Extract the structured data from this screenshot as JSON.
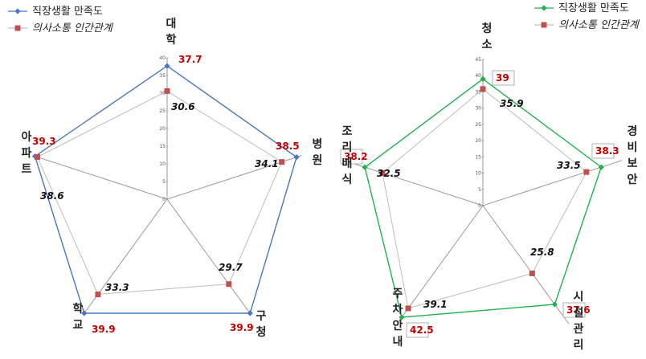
{
  "chart_data": [
    {
      "type": "radar",
      "legend": [
        "직장생활 만족도",
        "의사소통 인간관계"
      ],
      "legend_placement": "top-left",
      "categories": [
        "대학",
        "병원",
        "구청",
        "학교",
        "아파트"
      ],
      "rlim": [
        0,
        40
      ],
      "ticks": [
        "0",
        "5",
        "10",
        "15",
        "20",
        "25",
        "30",
        "35",
        "40"
      ],
      "series": [
        {
          "name": "직장생활 만족도",
          "color": "#4a76c2",
          "values": [
            37.7,
            38.5,
            39.9,
            39.9,
            39.3
          ]
        },
        {
          "name": "의사소통 인간관계",
          "color": "#c0504d",
          "values": [
            30.6,
            34.1,
            29.7,
            33.3,
            38.6
          ]
        }
      ]
    },
    {
      "type": "radar",
      "legend": [
        "직장생활 만족도",
        "의사소통 인간관계"
      ],
      "legend_placement": "top-right",
      "categories": [
        "청소",
        "경비보안",
        "시설관리",
        "주차안내",
        "조리배식"
      ],
      "rlim": [
        0,
        45
      ],
      "ticks": [
        "0",
        "5",
        "10",
        "15",
        "20",
        "25",
        "30",
        "35",
        "40",
        "45"
      ],
      "series": [
        {
          "name": "직장생활 만족도",
          "color": "#22b14c",
          "values": [
            39,
            38.3,
            37.6,
            42.5,
            38.2
          ]
        },
        {
          "name": "의사소통 인간관계",
          "color": "#c0504d",
          "values": [
            35.9,
            33.5,
            25.8,
            39.1,
            32.5
          ]
        }
      ]
    }
  ]
}
